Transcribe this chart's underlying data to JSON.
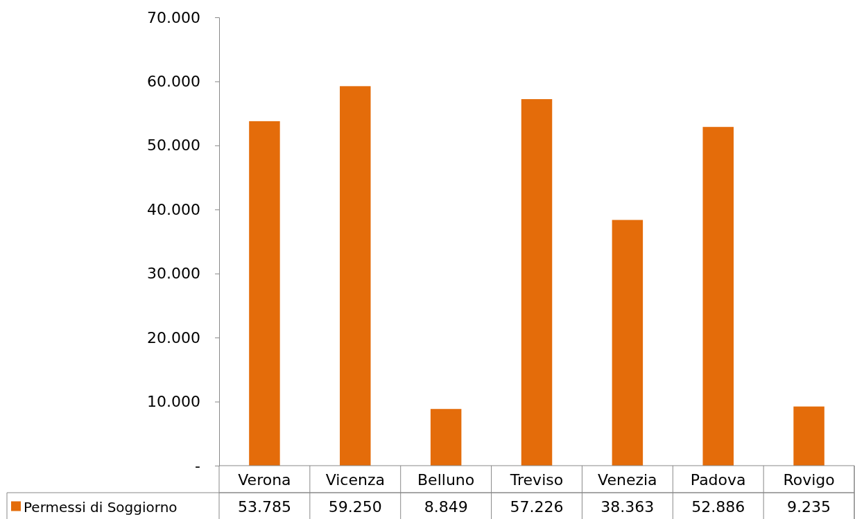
{
  "chart_data": {
    "type": "bar",
    "categories": [
      "Verona",
      "Vicenza",
      "Belluno",
      "Treviso",
      "Venezia",
      "Padova",
      "Rovigo"
    ],
    "series": [
      {
        "name": "Permessi di Soggiorno",
        "color": "#e46c0a",
        "values": [
          53785,
          59250,
          8849,
          57226,
          38363,
          52886,
          9235
        ],
        "value_labels": [
          "53.785",
          "59.250",
          "8.849",
          "57.226",
          "38.363",
          "52.886",
          "9.235"
        ]
      }
    ],
    "ylim": [
      0,
      70000
    ],
    "yticks": [
      {
        "value": 0,
        "label": "-"
      },
      {
        "value": 10000,
        "label": "10.000"
      },
      {
        "value": 20000,
        "label": "20.000"
      },
      {
        "value": 30000,
        "label": "30.000"
      },
      {
        "value": 40000,
        "label": "40.000"
      },
      {
        "value": 50000,
        "label": "50.000"
      },
      {
        "value": 60000,
        "label": "60.000"
      },
      {
        "value": 70000,
        "label": "70.000"
      }
    ],
    "grid": false,
    "legend": "bottom"
  }
}
